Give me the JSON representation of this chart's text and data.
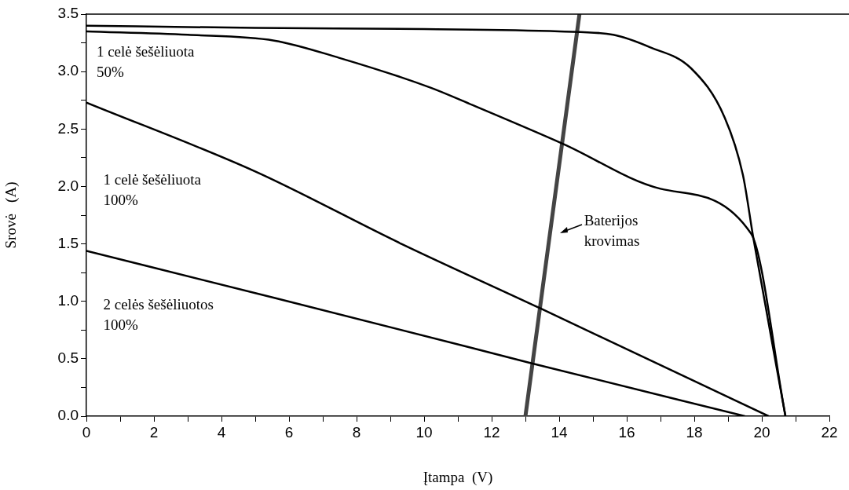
{
  "chart_data": {
    "type": "line",
    "xlabel": "Įtampa  (V)",
    "ylabel": "Srovė   (A)",
    "xlim": [
      0,
      22
    ],
    "ylim": [
      0,
      3.5
    ],
    "xticks": [
      0,
      {
        "value": 1,
        "label": null
      },
      2,
      {
        "value": 3,
        "label": null
      },
      4,
      {
        "value": 5,
        "label": null
      },
      6,
      {
        "value": 7,
        "label": null
      },
      8,
      {
        "value": 9,
        "label": null
      },
      10,
      {
        "value": 11,
        "label": null
      },
      12,
      {
        "value": 13,
        "label": null
      },
      14,
      {
        "value": 15,
        "label": null
      },
      16,
      {
        "value": 17,
        "label": null
      },
      18,
      {
        "value": 19,
        "label": null
      },
      20,
      {
        "value": 21,
        "label": null
      },
      22
    ],
    "yticks": [
      {
        "value": 0,
        "label": "0.0"
      },
      {
        "value": 0.25,
        "label": null
      },
      {
        "value": 0.5,
        "label": "0.5"
      },
      {
        "value": 0.75,
        "label": null
      },
      {
        "value": 1,
        "label": "1.0"
      },
      {
        "value": 1.25,
        "label": null
      },
      {
        "value": 1.5,
        "label": "1.5"
      },
      {
        "value": 1.75,
        "label": null
      },
      {
        "value": 2,
        "label": "2.0"
      },
      {
        "value": 2.25,
        "label": null
      },
      {
        "value": 2.5,
        "label": "2.5"
      },
      {
        "value": 2.75,
        "label": null
      },
      {
        "value": 3,
        "label": "3.0"
      },
      {
        "value": 3.25,
        "label": null
      },
      {
        "value": 3.5,
        "label": "3.5"
      }
    ],
    "grid": false,
    "legend": false,
    "marker": "none",
    "line_style": "solid",
    "series": [
      {
        "color": "#000000",
        "x": [
          0,
          5,
          10,
          14,
          15.6,
          16.7,
          17.9,
          18.9,
          19.44,
          19.75,
          20.7
        ],
        "values": [
          3.4,
          3.38,
          3.37,
          3.35,
          3.32,
          3.21,
          3.03,
          2.6,
          2.1,
          1.55,
          0
        ]
      },
      {
        "name": "1 celė šešėliuota 50%",
        "color": "#000000",
        "x": [
          0,
          3,
          5.56,
          7.48,
          10.19,
          11.34,
          14.12,
          17,
          19.68,
          20.7
        ],
        "values": [
          3.35,
          3.32,
          3.27,
          3.12,
          2.86,
          2.72,
          2.37,
          1.98,
          1.59,
          0
        ]
      },
      {
        "name": "1 celė šešėliuota 100%",
        "color": "#000000",
        "x": [
          0,
          5,
          9.33,
          13.43,
          20.2
        ],
        "values": [
          2.73,
          2.13,
          1.5,
          0.94,
          0
        ]
      },
      {
        "name": "2 celės šešėliuotos 100%",
        "color": "#000000",
        "x": [
          0,
          5.56,
          11.34,
          13.19,
          19.5
        ],
        "values": [
          1.44,
          1.03,
          0.6,
          0.46,
          0
        ]
      },
      {
        "color": "#444444",
        "x": [
          13,
          14.6
        ],
        "values": [
          0,
          3.5
        ]
      }
    ],
    "annotations": [
      "Baterijos krovimas"
    ]
  }
}
